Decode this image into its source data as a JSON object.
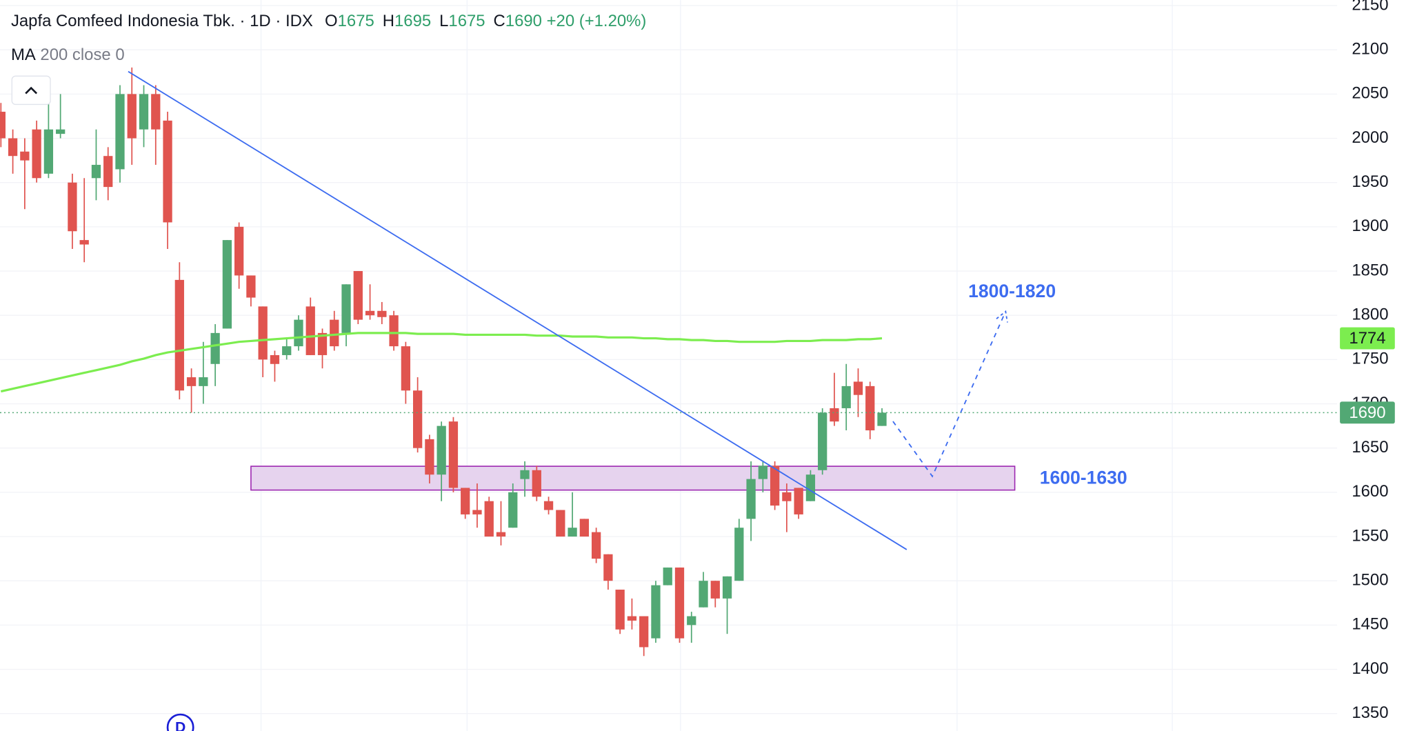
{
  "chart_data": {
    "type": "candlestick",
    "title": "Japfa Comfeed Indonesia Tbk.",
    "separator": "·",
    "interval": "1D",
    "exchange": "IDX",
    "ohlc_labels": [
      "O",
      "H",
      "L",
      "C"
    ],
    "ohlc_values": [
      1675,
      1695,
      1675,
      1690
    ],
    "change": "+20 (+1.20%)",
    "indicator": {
      "name": "MA",
      "params": "200 close 0",
      "color": "#7ced4f",
      "last_value": 1774,
      "values": [
        1714,
        1717,
        1720,
        1723,
        1726,
        1729,
        1732,
        1735,
        1738,
        1741,
        1744,
        1748,
        1751,
        1755,
        1758,
        1760,
        1762,
        1764,
        1766,
        1768,
        1770,
        1771,
        1772,
        1773,
        1774,
        1775,
        1776,
        1777,
        1778,
        1779,
        1780,
        1780,
        1780,
        1780,
        1780,
        1779,
        1779,
        1779,
        1779,
        1778,
        1778,
        1778,
        1778,
        1778,
        1778,
        1777,
        1777,
        1777,
        1776,
        1776,
        1776,
        1775,
        1775,
        1775,
        1774,
        1774,
        1773,
        1773,
        1772,
        1772,
        1771,
        1771,
        1770,
        1770,
        1770,
        1770,
        1771,
        1771,
        1771,
        1772,
        1772,
        1772,
        1773,
        1773,
        1774
      ]
    },
    "last_price": 1690,
    "up_color": "#52a874",
    "down_color": "#e0544f",
    "open": [
      2030,
      2000,
      1985,
      2010,
      1960,
      2005,
      1950,
      1885,
      1955,
      1980,
      1965,
      2050,
      2010,
      2050,
      2020,
      1840,
      1730,
      1720,
      1745,
      1785,
      1900,
      1845,
      1810,
      1755,
      1755,
      1765,
      1810,
      1780,
      1795,
      1780,
      1850,
      1805,
      1805,
      1800,
      1765,
      1715,
      1660,
      1620,
      1680,
      1605,
      1580,
      1590,
      1555,
      1560,
      1615,
      1625,
      1590,
      1580,
      1550,
      1570,
      1555,
      1530,
      1490,
      1460,
      1460,
      1435,
      1495,
      1515,
      1450,
      1470,
      1500,
      1480,
      1500,
      1570,
      1615,
      1630,
      1600,
      1605,
      1590,
      1625,
      1695,
      1695,
      1725,
      1720,
      1675
    ],
    "high": [
      2040,
      2010,
      2000,
      2020,
      2060,
      2050,
      1960,
      1955,
      2010,
      1990,
      2060,
      2080,
      2060,
      2060,
      2030,
      1860,
      1740,
      1770,
      1790,
      1885,
      1905,
      1845,
      1810,
      1760,
      1775,
      1800,
      1820,
      1785,
      1805,
      1835,
      1850,
      1835,
      1815,
      1805,
      1770,
      1730,
      1665,
      1680,
      1685,
      1605,
      1610,
      1595,
      1590,
      1610,
      1635,
      1630,
      1595,
      1580,
      1600,
      1570,
      1560,
      1530,
      1490,
      1480,
      1460,
      1500,
      1515,
      1515,
      1465,
      1510,
      1500,
      1505,
      1570,
      1635,
      1635,
      1635,
      1610,
      1605,
      1625,
      1695,
      1735,
      1745,
      1740,
      1725,
      1695
    ],
    "low": [
      1990,
      1960,
      1920,
      1950,
      1955,
      2000,
      1875,
      1860,
      1930,
      1930,
      1950,
      1970,
      1990,
      1970,
      1875,
      1705,
      1690,
      1700,
      1720,
      1785,
      1830,
      1810,
      1730,
      1725,
      1750,
      1760,
      1755,
      1740,
      1760,
      1765,
      1790,
      1795,
      1790,
      1760,
      1700,
      1645,
      1610,
      1590,
      1600,
      1570,
      1560,
      1550,
      1540,
      1560,
      1595,
      1590,
      1575,
      1550,
      1550,
      1550,
      1520,
      1490,
      1440,
      1445,
      1415,
      1430,
      1495,
      1430,
      1430,
      1470,
      1470,
      1440,
      1500,
      1545,
      1600,
      1580,
      1555,
      1570,
      1590,
      1620,
      1675,
      1670,
      1685,
      1660,
      1675
    ],
    "close": [
      2000,
      1980,
      1975,
      1955,
      2010,
      2010,
      1895,
      1880,
      1970,
      1945,
      2050,
      2000,
      2050,
      2010,
      1905,
      1715,
      1720,
      1730,
      1780,
      1885,
      1845,
      1820,
      1750,
      1745,
      1765,
      1795,
      1755,
      1755,
      1765,
      1835,
      1795,
      1800,
      1798,
      1765,
      1715,
      1650,
      1620,
      1675,
      1605,
      1575,
      1575,
      1550,
      1550,
      1600,
      1625,
      1595,
      1580,
      1550,
      1560,
      1550,
      1525,
      1500,
      1445,
      1455,
      1425,
      1495,
      1515,
      1435,
      1460,
      1500,
      1480,
      1505,
      1560,
      1615,
      1630,
      1585,
      1590,
      1575,
      1620,
      1690,
      1680,
      1720,
      1710,
      1670,
      1690
    ],
    "ylim": [
      1350,
      2150
    ],
    "yticks": [
      1350,
      1400,
      1450,
      1500,
      1550,
      1600,
      1650,
      1700,
      1750,
      1800,
      1850,
      1900,
      1950,
      2000,
      2050,
      2100,
      2150
    ],
    "grid": true,
    "annotations": [
      "1800-1820",
      "1600-1630"
    ],
    "marker": "D"
  }
}
